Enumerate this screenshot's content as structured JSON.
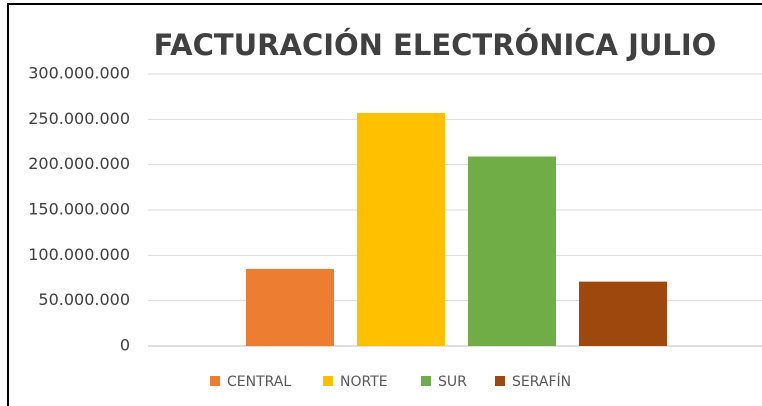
{
  "chart_data": {
    "type": "bar",
    "title": "FACTURACIÓN ELECTRÓNICA JULIO",
    "categories": [
      "CENTRAL",
      "NORTE",
      "SUR",
      "SERAFÍN"
    ],
    "values": [
      85000000,
      257000000,
      209000000,
      71000000
    ],
    "colors": [
      "#ED7D31",
      "#FFC000",
      "#70AD47",
      "#9E480E"
    ],
    "ylim": [
      0,
      300000000
    ],
    "yticks": [
      0,
      {
        "value": 50000000,
        "label": "50.000.000"
      },
      {
        "value": 100000000,
        "label": "100.000.000"
      },
      {
        "value": 150000000,
        "label": "150.000.000"
      },
      {
        "value": 200000000,
        "label": "200.000.000"
      },
      {
        "value": 250000000,
        "label": "250.000.000"
      },
      {
        "value": 300000000,
        "label": "300.000.000"
      }
    ],
    "grid": true,
    "legend": "bottom"
  }
}
